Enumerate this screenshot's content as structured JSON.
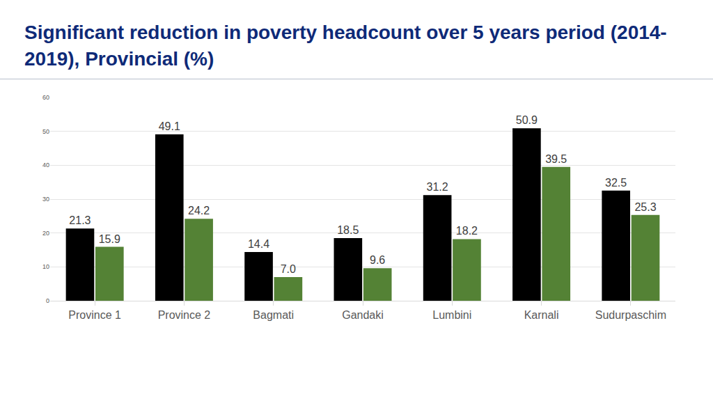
{
  "chart_data": {
    "type": "bar",
    "title": "Significant reduction in poverty headcount over 5 years period (2014-2019), Provincial (%)",
    "categories": [
      "Province 1",
      "Province 2",
      "Bagmati",
      "Gandaki",
      "Lumbini",
      "Karnali",
      "Sudurpaschim"
    ],
    "series": [
      {
        "color": "#000000",
        "values": [
          21.3,
          49.1,
          14.4,
          18.5,
          31.2,
          50.9,
          32.5
        ],
        "value_labels": [
          "21.3",
          "49.1",
          "14.4",
          "18.5",
          "31.2",
          "50.9",
          "32.5"
        ]
      },
      {
        "color": "#548235",
        "values": [
          15.9,
          24.2,
          7.0,
          9.6,
          18.2,
          39.5,
          25.3
        ],
        "value_labels": [
          "15.9",
          "24.2",
          "7.0",
          "9.6",
          "18.2",
          "39.5",
          "25.3"
        ]
      }
    ],
    "ylim": [
      0,
      60
    ],
    "yticks": [
      0,
      10,
      20,
      30,
      40,
      50,
      60
    ],
    "grid": true,
    "data_labels": true
  }
}
